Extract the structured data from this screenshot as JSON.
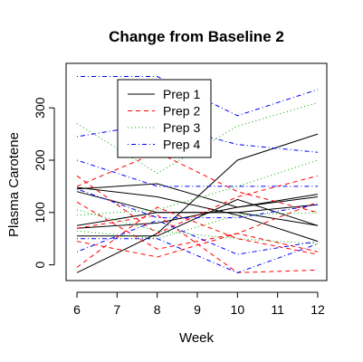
{
  "chart_data": {
    "type": "line",
    "title": "Change from Baseline 2",
    "xlabel": "Week",
    "ylabel": "Plasma Carotene",
    "xlim": [
      6,
      12
    ],
    "ylim": [
      -30,
      385
    ],
    "x_ticks": [
      6,
      7,
      8,
      9,
      10,
      11,
      12
    ],
    "y_ticks": [
      0,
      100,
      200,
      300
    ],
    "x": [
      6,
      8,
      10,
      12
    ],
    "grid": false,
    "legend_position": "top-left",
    "series": [
      {
        "name": "Prep 1",
        "color": "#000000",
        "dash": "solid",
        "lines": [
          [
            -15,
            60,
            200,
            250
          ],
          [
            145,
            155,
            110,
            130
          ],
          [
            148,
            130,
            95,
            45
          ],
          [
            75,
            100,
            100,
            115
          ],
          [
            55,
            55,
            125,
            75
          ],
          [
            140,
            100,
            100,
            75
          ],
          [
            70,
            80,
            110,
            135
          ]
        ]
      },
      {
        "name": "Prep 2",
        "color": "#ff0000",
        "dash": "dashed",
        "lines": [
          [
            170,
            60,
            130,
            170
          ],
          [
            150,
            215,
            140,
            100
          ],
          [
            -5,
            110,
            50,
            20
          ],
          [
            45,
            15,
            60,
            25
          ],
          [
            70,
            95,
            -15,
            -10
          ],
          [
            120,
            30,
            60,
            120
          ]
        ]
      },
      {
        "name": "Prep 3",
        "color": "#00aa00",
        "dash": "dotted",
        "lines": [
          [
            270,
            175,
            265,
            310
          ],
          [
            95,
            105,
            150,
            200
          ],
          [
            105,
            65,
            50,
            40
          ],
          [
            65,
            50,
            95,
            100
          ]
        ]
      },
      {
        "name": "Prep 4",
        "color": "#0000ff",
        "dash": "dotdash",
        "lines": [
          [
            360,
            360,
            285,
            335
          ],
          [
            245,
            270,
            230,
            215
          ],
          [
            200,
            150,
            150,
            150
          ],
          [
            25,
            85,
            20,
            45
          ],
          [
            50,
            50,
            -15,
            40
          ],
          [
            145,
            90,
            90,
            115
          ]
        ]
      }
    ]
  }
}
